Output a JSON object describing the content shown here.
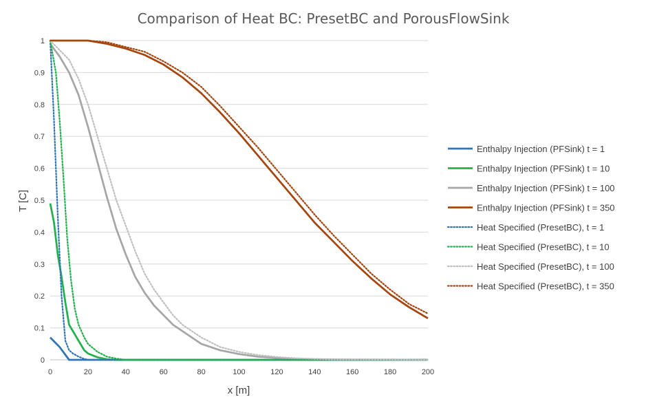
{
  "chart_data": {
    "type": "line",
    "title": "Comparison of Heat BC: PresetBC and PorousFlowSink",
    "xlabel": "x [m]",
    "ylabel": "T [C]",
    "xlim": [
      0,
      200
    ],
    "ylim": [
      0,
      1
    ],
    "x_ticks": [
      "0",
      "20",
      "40",
      "60",
      "80",
      "100",
      "120",
      "140",
      "160",
      "180",
      "200"
    ],
    "y_ticks": [
      "0",
      "0.1",
      "0.2",
      "0.3",
      "0.4",
      "0.5",
      "0.6",
      "0.7",
      "0.8",
      "0.9",
      "1"
    ],
    "grid": true,
    "legend_position": "right",
    "series": [
      {
        "name": "Enthalpy Injection (PFSink) t = 1",
        "color": "#2e75b6",
        "style": "solid",
        "points": [
          [
            0,
            0.07
          ],
          [
            5,
            0.04
          ],
          [
            10,
            0.0
          ],
          [
            200,
            0.0
          ]
        ]
      },
      {
        "name": "Enthalpy Injection (PFSink) t = 10",
        "color": "#22b14c",
        "style": "solid",
        "points": [
          [
            0,
            0.49
          ],
          [
            2,
            0.43
          ],
          [
            4,
            0.33
          ],
          [
            6,
            0.26
          ],
          [
            8,
            0.18
          ],
          [
            10,
            0.11
          ],
          [
            12,
            0.09
          ],
          [
            15,
            0.06
          ],
          [
            18,
            0.03
          ],
          [
            20,
            0.02
          ],
          [
            25,
            0.008
          ],
          [
            30,
            0.002
          ],
          [
            35,
            0.0
          ],
          [
            200,
            0.0
          ]
        ]
      },
      {
        "name": "Enthalpy Injection (PFSink) t = 100",
        "color": "#a6a6a6",
        "style": "solid",
        "points": [
          [
            0,
            0.99
          ],
          [
            5,
            0.95
          ],
          [
            10,
            0.9
          ],
          [
            15,
            0.83
          ],
          [
            20,
            0.73
          ],
          [
            25,
            0.62
          ],
          [
            30,
            0.51
          ],
          [
            35,
            0.41
          ],
          [
            40,
            0.33
          ],
          [
            45,
            0.26
          ],
          [
            50,
            0.21
          ],
          [
            55,
            0.17
          ],
          [
            60,
            0.14
          ],
          [
            65,
            0.11
          ],
          [
            70,
            0.09
          ],
          [
            75,
            0.07
          ],
          [
            80,
            0.05
          ],
          [
            85,
            0.04
          ],
          [
            90,
            0.03
          ],
          [
            100,
            0.018
          ],
          [
            110,
            0.01
          ],
          [
            120,
            0.006
          ],
          [
            130,
            0.003
          ],
          [
            140,
            0.002
          ],
          [
            150,
            0.001
          ],
          [
            200,
            0.0
          ]
        ]
      },
      {
        "name": "Enthalpy Injection (PFSink) t = 350",
        "color": "#a5460f",
        "style": "solid",
        "points": [
          [
            0,
            1.0
          ],
          [
            10,
            1.0
          ],
          [
            20,
            1.0
          ],
          [
            30,
            0.99
          ],
          [
            40,
            0.975
          ],
          [
            50,
            0.955
          ],
          [
            60,
            0.925
          ],
          [
            70,
            0.885
          ],
          [
            80,
            0.835
          ],
          [
            90,
            0.775
          ],
          [
            100,
            0.71
          ],
          [
            110,
            0.64
          ],
          [
            120,
            0.57
          ],
          [
            130,
            0.5
          ],
          [
            140,
            0.43
          ],
          [
            150,
            0.37
          ],
          [
            160,
            0.31
          ],
          [
            170,
            0.255
          ],
          [
            180,
            0.205
          ],
          [
            190,
            0.165
          ],
          [
            200,
            0.13
          ]
        ]
      },
      {
        "name": "Heat Specified (PresetBC), t = 1",
        "color": "#2e75b6",
        "style": "dotted",
        "points": [
          [
            0,
            1.0
          ],
          [
            2,
            0.75
          ],
          [
            4,
            0.45
          ],
          [
            6,
            0.2
          ],
          [
            8,
            0.06
          ],
          [
            10,
            0.03
          ],
          [
            12,
            0.02
          ],
          [
            15,
            0.01
          ],
          [
            18,
            0.003
          ],
          [
            20,
            0.0
          ],
          [
            200,
            0.0
          ]
        ]
      },
      {
        "name": "Heat Specified (PresetBC), t = 10",
        "color": "#22b14c",
        "style": "dotted",
        "points": [
          [
            0,
            1.0
          ],
          [
            3,
            0.9
          ],
          [
            5,
            0.75
          ],
          [
            7,
            0.57
          ],
          [
            9,
            0.38
          ],
          [
            11,
            0.25
          ],
          [
            13,
            0.16
          ],
          [
            15,
            0.11
          ],
          [
            18,
            0.07
          ],
          [
            20,
            0.05
          ],
          [
            25,
            0.025
          ],
          [
            30,
            0.01
          ],
          [
            35,
            0.004
          ],
          [
            40,
            0.0
          ],
          [
            200,
            0.0
          ]
        ]
      },
      {
        "name": "Heat Specified (PresetBC), t = 100",
        "color": "#bfbfbf",
        "style": "dotted",
        "points": [
          [
            0,
            1.0
          ],
          [
            5,
            0.97
          ],
          [
            10,
            0.94
          ],
          [
            15,
            0.88
          ],
          [
            20,
            0.8
          ],
          [
            25,
            0.7
          ],
          [
            30,
            0.6
          ],
          [
            35,
            0.5
          ],
          [
            40,
            0.42
          ],
          [
            45,
            0.34
          ],
          [
            50,
            0.27
          ],
          [
            55,
            0.22
          ],
          [
            60,
            0.18
          ],
          [
            65,
            0.14
          ],
          [
            70,
            0.11
          ],
          [
            75,
            0.09
          ],
          [
            80,
            0.07
          ],
          [
            85,
            0.055
          ],
          [
            90,
            0.04
          ],
          [
            100,
            0.025
          ],
          [
            110,
            0.015
          ],
          [
            120,
            0.009
          ],
          [
            130,
            0.005
          ],
          [
            140,
            0.003
          ],
          [
            150,
            0.001
          ],
          [
            200,
            0.0
          ]
        ]
      },
      {
        "name": "Heat Specified (PresetBC), t = 350",
        "color": "#a5460f",
        "style": "dotted",
        "points": [
          [
            0,
            1.0
          ],
          [
            10,
            1.0
          ],
          [
            20,
            1.0
          ],
          [
            30,
            0.995
          ],
          [
            40,
            0.98
          ],
          [
            50,
            0.965
          ],
          [
            60,
            0.935
          ],
          [
            70,
            0.9
          ],
          [
            80,
            0.855
          ],
          [
            90,
            0.795
          ],
          [
            100,
            0.73
          ],
          [
            110,
            0.665
          ],
          [
            120,
            0.595
          ],
          [
            130,
            0.525
          ],
          [
            140,
            0.455
          ],
          [
            150,
            0.39
          ],
          [
            160,
            0.33
          ],
          [
            170,
            0.27
          ],
          [
            180,
            0.22
          ],
          [
            190,
            0.175
          ],
          [
            200,
            0.145
          ]
        ]
      }
    ]
  }
}
